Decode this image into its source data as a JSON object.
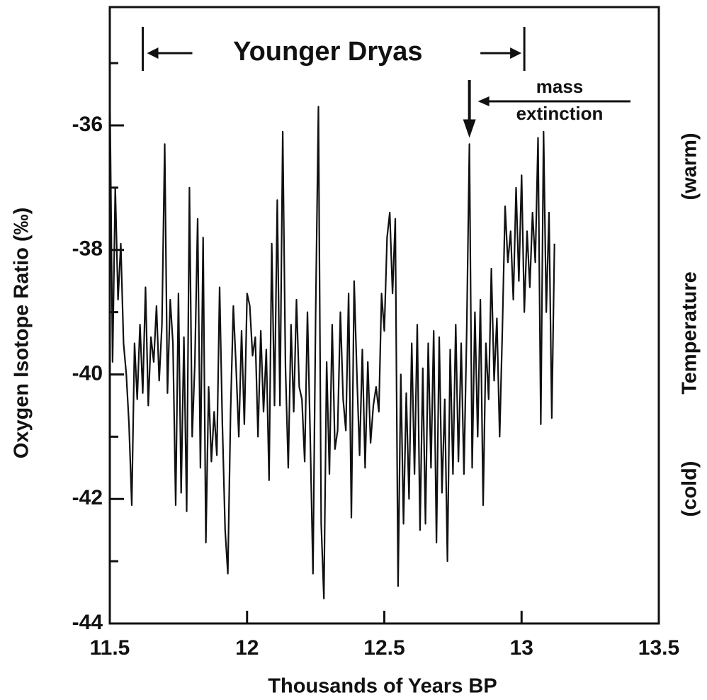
{
  "chart_data": {
    "type": "line",
    "x_label": "Thousands of Years BP",
    "y_label": "Oxygen Isotope Ratio (‰)",
    "y2_labels": [
      "(cold)",
      "Temperature",
      "(warm)"
    ],
    "color": "#111111",
    "x": [
      11.5,
      11.51,
      11.52,
      11.53,
      11.54,
      11.55,
      11.56,
      11.57,
      11.58,
      11.59,
      11.6,
      11.61,
      11.62,
      11.63,
      11.64,
      11.65,
      11.66,
      11.67,
      11.68,
      11.69,
      11.7,
      11.71,
      11.72,
      11.73,
      11.74,
      11.75,
      11.76,
      11.77,
      11.78,
      11.79,
      11.8,
      11.81,
      11.82,
      11.83,
      11.84,
      11.85,
      11.86,
      11.87,
      11.88,
      11.89,
      11.9,
      11.91,
      11.92,
      11.93,
      11.94,
      11.95,
      11.96,
      11.97,
      11.98,
      11.99,
      12.0,
      12.01,
      12.02,
      12.03,
      12.04,
      12.05,
      12.06,
      12.07,
      12.08,
      12.09,
      12.1,
      12.11,
      12.12,
      12.13,
      12.14,
      12.15,
      12.16,
      12.17,
      12.18,
      12.19,
      12.2,
      12.21,
      12.22,
      12.23,
      12.24,
      12.25,
      12.26,
      12.27,
      12.28,
      12.29,
      12.3,
      12.31,
      12.32,
      12.33,
      12.34,
      12.35,
      12.36,
      12.37,
      12.38,
      12.39,
      12.4,
      12.41,
      12.42,
      12.43,
      12.44,
      12.45,
      12.46,
      12.47,
      12.48,
      12.49,
      12.5,
      12.51,
      12.52,
      12.53,
      12.54,
      12.55,
      12.56,
      12.57,
      12.58,
      12.59,
      12.6,
      12.61,
      12.62,
      12.63,
      12.64,
      12.65,
      12.66,
      12.67,
      12.68,
      12.69,
      12.7,
      12.71,
      12.72,
      12.73,
      12.74,
      12.75,
      12.76,
      12.77,
      12.78,
      12.79,
      12.8,
      12.81,
      12.82,
      12.83,
      12.84,
      12.85,
      12.86,
      12.87,
      12.88,
      12.89,
      12.9,
      12.91,
      12.92,
      12.93,
      12.94,
      12.95,
      12.96,
      12.97,
      12.98,
      12.99,
      13.0,
      13.01,
      13.02,
      13.03,
      13.04,
      13.05,
      13.06,
      13.07,
      13.08,
      13.09,
      13.1,
      13.11,
      13.12
    ],
    "values": [
      -35.3,
      -39.8,
      -37.0,
      -38.8,
      -37.9,
      -39.5,
      -40.0,
      -40.8,
      -42.1,
      -39.5,
      -40.4,
      -39.2,
      -40.3,
      -38.6,
      -40.5,
      -39.4,
      -39.8,
      -38.9,
      -40.1,
      -39.2,
      -36.3,
      -40.3,
      -38.8,
      -39.5,
      -42.1,
      -38.7,
      -41.9,
      -39.4,
      -42.2,
      -37.0,
      -41.0,
      -39.8,
      -37.5,
      -41.5,
      -37.8,
      -42.7,
      -40.2,
      -41.4,
      -40.6,
      -41.3,
      -38.6,
      -40.8,
      -42.5,
      -43.2,
      -40.6,
      -38.9,
      -39.9,
      -41.0,
      -39.3,
      -40.8,
      -38.7,
      -38.9,
      -39.7,
      -39.4,
      -41.0,
      -39.3,
      -40.6,
      -39.6,
      -41.7,
      -37.9,
      -40.5,
      -37.2,
      -40.5,
      -36.1,
      -39.9,
      -41.5,
      -39.2,
      -40.6,
      -38.8,
      -40.2,
      -40.4,
      -41.4,
      -39.0,
      -41.0,
      -43.2,
      -39.0,
      -35.7,
      -42.4,
      -43.6,
      -39.8,
      -41.6,
      -39.2,
      -41.2,
      -40.9,
      -39.0,
      -40.4,
      -40.9,
      -38.7,
      -42.3,
      -38.5,
      -40.0,
      -41.3,
      -39.6,
      -41.5,
      -39.8,
      -41.1,
      -40.5,
      -40.2,
      -40.6,
      -38.7,
      -39.3,
      -37.8,
      -37.4,
      -38.7,
      -37.5,
      -43.4,
      -40.0,
      -42.4,
      -40.3,
      -42.0,
      -39.5,
      -41.6,
      -39.2,
      -42.5,
      -39.9,
      -42.4,
      -39.5,
      -41.5,
      -39.3,
      -42.7,
      -39.4,
      -41.9,
      -40.4,
      -43.0,
      -39.6,
      -41.6,
      -39.2,
      -41.4,
      -39.5,
      -41.6,
      -39.3,
      -36.3,
      -41.5,
      -39.0,
      -41.0,
      -38.8,
      -42.1,
      -39.5,
      -40.4,
      -38.3,
      -40.1,
      -39.1,
      -41.0,
      -39.3,
      -37.3,
      -38.2,
      -37.7,
      -38.8,
      -37.0,
      -38.5,
      -36.8,
      -39.0,
      -37.7,
      -38.6,
      -37.4,
      -38.2,
      -36.2,
      -40.8,
      -36.1,
      -39.0,
      -37.4,
      -40.7,
      -37.9
    ],
    "xlim": [
      11.5,
      13.5
    ],
    "xticks": [
      11.5,
      12,
      12.5,
      13,
      13.5
    ],
    "ylim": [
      -44,
      -34.1
    ],
    "yticks": [
      -44,
      -42,
      -40,
      -38,
      -36
    ],
    "y_minor_ticks": [
      -43,
      -41,
      -39,
      -37,
      -35
    ],
    "annotations": {
      "younger_dryas": {
        "text": "Younger Dryas",
        "x": [
          11.62,
          13.01
        ]
      },
      "mass_extinction": {
        "lines": [
          "mass",
          "extinction"
        ],
        "x": 12.81,
        "y": -36.2
      }
    }
  }
}
